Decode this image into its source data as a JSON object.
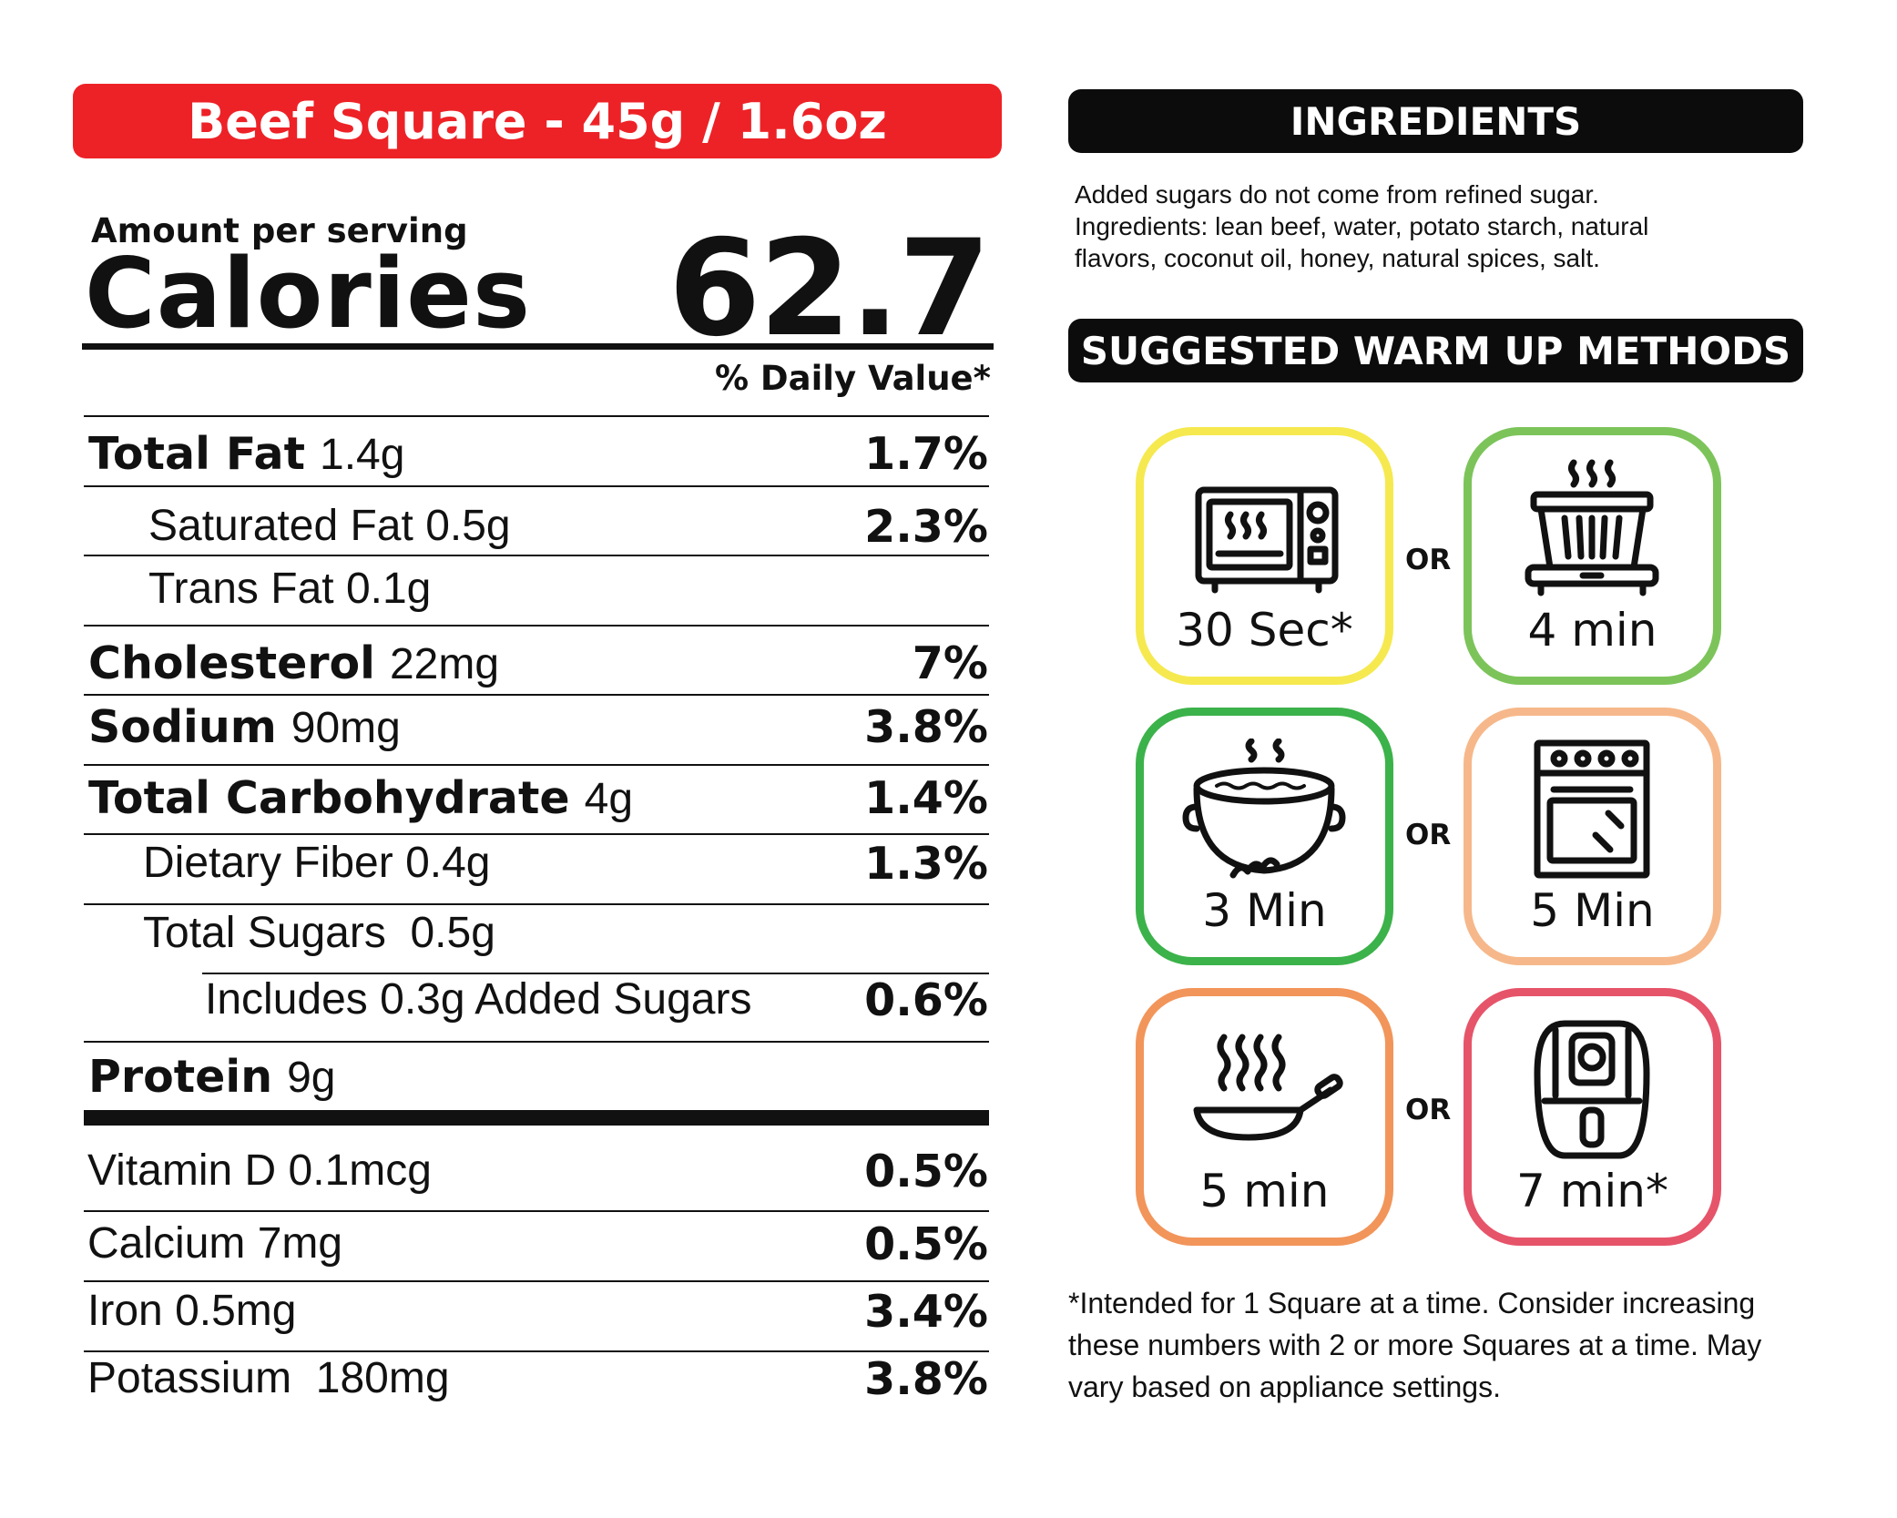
{
  "header": {
    "title": "Beef Square - 45g / 1.6oz",
    "color": "#ed2227"
  },
  "serving": {
    "amount_label": "Amount per serving",
    "calories_label": "Calories",
    "calories_value": "62.7"
  },
  "daily_value_header": "% Daily Value*",
  "nutrients": [
    {
      "name": "Total Fat",
      "amount": "1.4g",
      "dv": "1.7%",
      "bold": true
    },
    {
      "name": "Saturated Fat",
      "amount": "0.5g",
      "dv": "2.3%",
      "bold": false
    },
    {
      "name": "Trans Fat",
      "amount": "0.1g",
      "dv": "",
      "bold": false
    },
    {
      "name": "Cholesterol",
      "amount": "22mg",
      "dv": "7%",
      "bold": true
    },
    {
      "name": "Sodium",
      "amount": "90mg",
      "dv": "3.8%",
      "bold": true
    },
    {
      "name": "Total Carbohydrate",
      "amount": "4g",
      "dv": "1.4%",
      "bold": true
    },
    {
      "name": "Dietary Fiber",
      "amount": "0.4g",
      "dv": "1.3%",
      "bold": false
    },
    {
      "name": "Total Sugars",
      "amount": "0.5g",
      "dv": "",
      "bold": false
    },
    {
      "name": "Includes",
      "amount": "0.3g Added Sugars",
      "dv": "0.6%",
      "bold": false
    },
    {
      "name": "Protein",
      "amount": "9g",
      "dv": "",
      "bold": true
    }
  ],
  "vitamins": [
    {
      "name": "Vitamin D",
      "amount": "0.1mcg",
      "dv": "0.5%"
    },
    {
      "name": "Calcium",
      "amount": "7mg",
      "dv": "0.5%"
    },
    {
      "name": "Iron",
      "amount": "0.5mg",
      "dv": "3.4%"
    },
    {
      "name": "Potassium",
      "amount": "180mg",
      "dv": "3.8%"
    }
  ],
  "ingredients": {
    "heading": "INGREDIENTS",
    "lines": [
      "Added sugars do not come from refined sugar.",
      "Ingredients: lean beef, water, potato starch, natural",
      "flavors, coconut oil, honey, natural spices, salt."
    ]
  },
  "warmup": {
    "heading": "SUGGESTED WARM UP METHODS",
    "or_label": "OR",
    "methods": [
      {
        "icon": "microwave-icon",
        "time": "30 Sec*",
        "color": "#f5e94f"
      },
      {
        "icon": "steamer-icon",
        "time": "4 min",
        "color": "#7cc45a"
      },
      {
        "icon": "boiling-pot-icon",
        "time": "3 Min",
        "color": "#3cb24a"
      },
      {
        "icon": "oven-icon",
        "time": "5 Min",
        "color": "#f6b88a"
      },
      {
        "icon": "frying-pan-icon",
        "time": "5 min",
        "color": "#f2955a"
      },
      {
        "icon": "air-fryer-icon",
        "time": "7 min*",
        "color": "#e6546a"
      }
    ]
  },
  "footnote": [
    "*Intended for 1 Square at a time. Consider increasing",
    "these numbers with 2 or more Squares at a time. May",
    "vary based on appliance settings."
  ]
}
